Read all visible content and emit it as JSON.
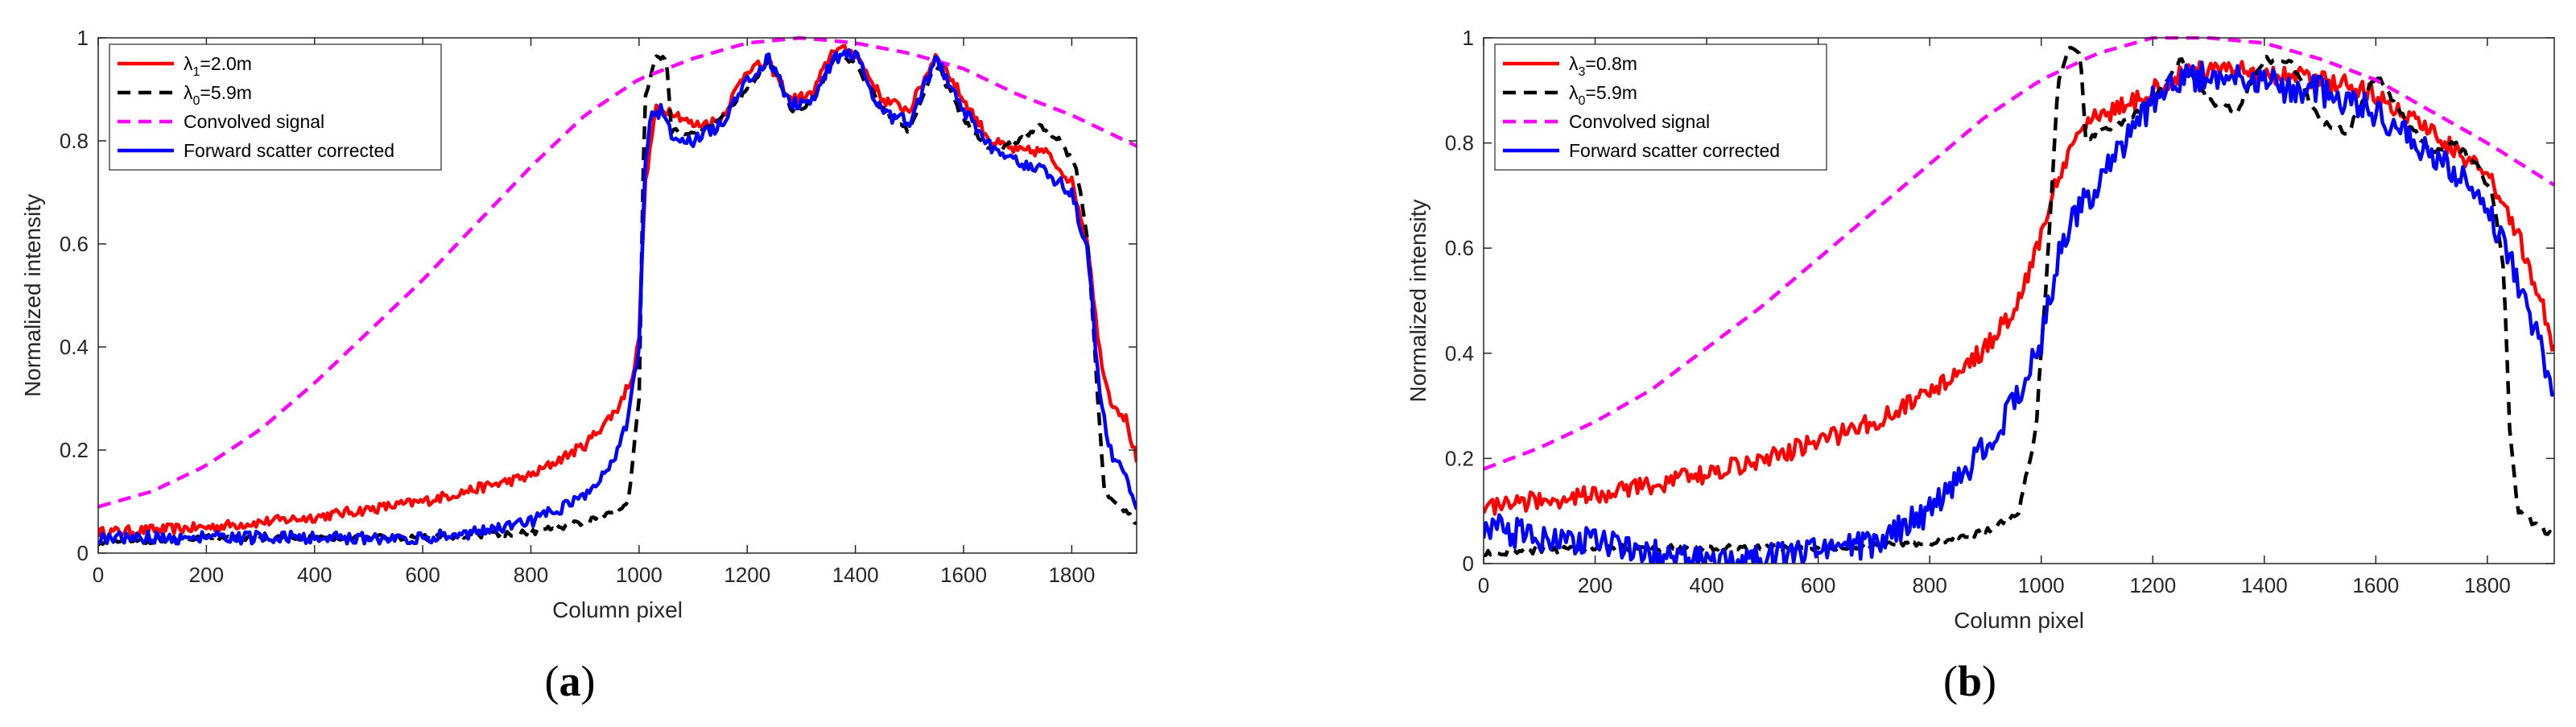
{
  "chart_data": [
    {
      "type": "line",
      "caption": "a",
      "xlabel": "Column pixel",
      "ylabel": "Normalized intensity",
      "xlim": [
        0,
        1920
      ],
      "ylim": [
        0,
        1
      ],
      "xticks": [
        0,
        200,
        400,
        600,
        800,
        1000,
        1200,
        1400,
        1600,
        1800
      ],
      "yticks": [
        0,
        0.2,
        0.4,
        0.6,
        0.8,
        1
      ],
      "grid": false,
      "legend_position": "top-left",
      "series": [
        {
          "name": "λ1=2.0m",
          "label_base": "λ",
          "label_sub": "1",
          "label_rest": "=2.0m",
          "color": "#ff0000",
          "style": "solid",
          "noise": 0.01,
          "x": [
            0,
            200,
            400,
            600,
            800,
            900,
            960,
            990,
            1000,
            1010,
            1030,
            1060,
            1100,
            1150,
            1200,
            1240,
            1280,
            1320,
            1360,
            1400,
            1450,
            1500,
            1550,
            1600,
            1650,
            1700,
            1750,
            1800,
            1830,
            1850,
            1870,
            1900,
            1920
          ],
          "y": [
            0.04,
            0.05,
            0.07,
            0.1,
            0.15,
            0.21,
            0.28,
            0.35,
            0.42,
            0.7,
            0.86,
            0.86,
            0.83,
            0.84,
            0.94,
            0.95,
            0.88,
            0.89,
            0.98,
            0.97,
            0.88,
            0.86,
            0.97,
            0.88,
            0.8,
            0.78,
            0.78,
            0.72,
            0.6,
            0.4,
            0.3,
            0.26,
            0.18
          ]
        },
        {
          "name": "λ0=5.9m",
          "label_base": "λ",
          "label_sub": "0",
          "label_rest": "=5.9m",
          "color": "#000000",
          "style": "dashed",
          "noise": 0.006,
          "x": [
            0,
            200,
            400,
            600,
            800,
            900,
            950,
            980,
            1000,
            1010,
            1030,
            1050,
            1060,
            1100,
            1150,
            1200,
            1240,
            1280,
            1320,
            1360,
            1400,
            1450,
            1500,
            1550,
            1600,
            1650,
            1700,
            1740,
            1780,
            1810,
            1830,
            1845,
            1860,
            1900,
            1920
          ],
          "y": [
            0.02,
            0.03,
            0.03,
            0.03,
            0.04,
            0.06,
            0.08,
            0.1,
            0.3,
            0.88,
            0.96,
            0.96,
            0.82,
            0.81,
            0.84,
            0.9,
            0.96,
            0.86,
            0.87,
            0.96,
            0.95,
            0.86,
            0.82,
            0.95,
            0.84,
            0.78,
            0.8,
            0.83,
            0.8,
            0.74,
            0.6,
            0.35,
            0.12,
            0.08,
            0.06
          ]
        },
        {
          "name": "Convolved signal",
          "label_base": "Convolved signal",
          "label_sub": "",
          "label_rest": "",
          "color": "#ff00ff",
          "style": "dashed",
          "noise": 0,
          "x": [
            0,
            100,
            200,
            300,
            400,
            500,
            600,
            700,
            800,
            900,
            1000,
            1100,
            1200,
            1300,
            1400,
            1500,
            1600,
            1700,
            1800,
            1920
          ],
          "y": [
            0.09,
            0.12,
            0.17,
            0.24,
            0.33,
            0.43,
            0.53,
            0.64,
            0.75,
            0.85,
            0.92,
            0.96,
            0.99,
            1.0,
            0.99,
            0.97,
            0.94,
            0.89,
            0.85,
            0.79
          ]
        },
        {
          "name": "Forward scatter corrected",
          "label_base": "Forward scatter corrected",
          "label_sub": "",
          "label_rest": "",
          "color": "#0000ff",
          "style": "solid",
          "noise": 0.012,
          "x": [
            0,
            200,
            400,
            600,
            700,
            800,
            900,
            950,
            980,
            1000,
            1010,
            1020,
            1040,
            1060,
            1100,
            1150,
            1200,
            1240,
            1280,
            1320,
            1360,
            1400,
            1450,
            1500,
            1550,
            1600,
            1650,
            1700,
            1750,
            1800,
            1830,
            1850,
            1870,
            1900,
            1920
          ],
          "y": [
            0.03,
            0.03,
            0.03,
            0.03,
            0.04,
            0.06,
            0.11,
            0.17,
            0.26,
            0.4,
            0.74,
            0.84,
            0.86,
            0.81,
            0.8,
            0.83,
            0.92,
            0.96,
            0.87,
            0.88,
            0.96,
            0.97,
            0.85,
            0.84,
            0.96,
            0.86,
            0.79,
            0.76,
            0.74,
            0.7,
            0.58,
            0.33,
            0.2,
            0.15,
            0.09
          ]
        }
      ]
    },
    {
      "type": "line",
      "caption": "b",
      "xlabel": "Column pixel",
      "ylabel": "Normalized intensity",
      "xlim": [
        0,
        1920
      ],
      "ylim": [
        0,
        1
      ],
      "xticks": [
        0,
        200,
        400,
        600,
        800,
        1000,
        1200,
        1400,
        1600,
        1800
      ],
      "yticks": [
        0,
        0.2,
        0.4,
        0.6,
        0.8,
        1
      ],
      "grid": false,
      "legend_position": "top-left",
      "series": [
        {
          "name": "λ3=0.8m",
          "label_base": "λ",
          "label_sub": "3",
          "label_rest": "=0.8m",
          "color": "#ff0000",
          "style": "solid",
          "noise": 0.018,
          "x": [
            0,
            100,
            200,
            300,
            400,
            500,
            600,
            700,
            800,
            900,
            950,
            1000,
            1030,
            1060,
            1100,
            1150,
            1200,
            1250,
            1300,
            1350,
            1400,
            1450,
            1500,
            1550,
            1600,
            1650,
            1700,
            1750,
            1800,
            1850,
            1900,
            1920
          ],
          "y": [
            0.11,
            0.12,
            0.13,
            0.15,
            0.17,
            0.2,
            0.23,
            0.27,
            0.32,
            0.41,
            0.48,
            0.62,
            0.74,
            0.8,
            0.85,
            0.87,
            0.9,
            0.93,
            0.94,
            0.94,
            0.93,
            0.93,
            0.92,
            0.91,
            0.89,
            0.86,
            0.82,
            0.78,
            0.74,
            0.64,
            0.49,
            0.4
          ]
        },
        {
          "name": "λ0=5.9m",
          "label_base": "λ",
          "label_sub": "0",
          "label_rest": "=5.9m",
          "color": "#000000",
          "style": "dashed",
          "noise": 0.006,
          "x": [
            0,
            200,
            400,
            600,
            800,
            900,
            960,
            990,
            1010,
            1030,
            1050,
            1070,
            1080,
            1100,
            1150,
            1200,
            1250,
            1300,
            1350,
            1400,
            1450,
            1500,
            1550,
            1600,
            1650,
            1700,
            1740,
            1780,
            1810,
            1830,
            1840,
            1855,
            1880,
            1920
          ],
          "y": [
            0.02,
            0.03,
            0.03,
            0.03,
            0.04,
            0.06,
            0.1,
            0.25,
            0.55,
            0.92,
            0.98,
            0.97,
            0.8,
            0.82,
            0.84,
            0.88,
            0.96,
            0.88,
            0.86,
            0.96,
            0.95,
            0.84,
            0.82,
            0.93,
            0.85,
            0.78,
            0.8,
            0.76,
            0.7,
            0.55,
            0.25,
            0.1,
            0.08,
            0.05
          ]
        },
        {
          "name": "Convolved signal",
          "label_base": "Convolved signal",
          "label_sub": "",
          "label_rest": "",
          "color": "#ff00ff",
          "style": "dashed",
          "noise": 0,
          "x": [
            0,
            100,
            200,
            300,
            400,
            500,
            600,
            700,
            800,
            900,
            1000,
            1100,
            1200,
            1300,
            1400,
            1500,
            1600,
            1700,
            1800,
            1920
          ],
          "y": [
            0.18,
            0.22,
            0.27,
            0.33,
            0.41,
            0.49,
            0.58,
            0.67,
            0.76,
            0.85,
            0.92,
            0.97,
            1.0,
            1.0,
            0.99,
            0.96,
            0.92,
            0.86,
            0.8,
            0.72
          ]
        },
        {
          "name": "Forward scatter corrected",
          "label_base": "Forward scatter corrected",
          "label_sub": "",
          "label_rest": "",
          "color": "#0000ff",
          "style": "solid",
          "noise": 0.028,
          "x": [
            0,
            100,
            200,
            300,
            400,
            500,
            600,
            700,
            800,
            900,
            950,
            1000,
            1030,
            1060,
            1100,
            1150,
            1200,
            1250,
            1300,
            1350,
            1400,
            1450,
            1500,
            1550,
            1600,
            1650,
            1700,
            1750,
            1800,
            1850,
            1900,
            1920
          ],
          "y": [
            0.07,
            0.05,
            0.04,
            0.02,
            0.01,
            0.01,
            0.02,
            0.04,
            0.1,
            0.22,
            0.3,
            0.42,
            0.58,
            0.66,
            0.72,
            0.8,
            0.88,
            0.92,
            0.93,
            0.93,
            0.92,
            0.9,
            0.9,
            0.88,
            0.86,
            0.82,
            0.78,
            0.74,
            0.68,
            0.55,
            0.4,
            0.3
          ]
        }
      ]
    }
  ]
}
